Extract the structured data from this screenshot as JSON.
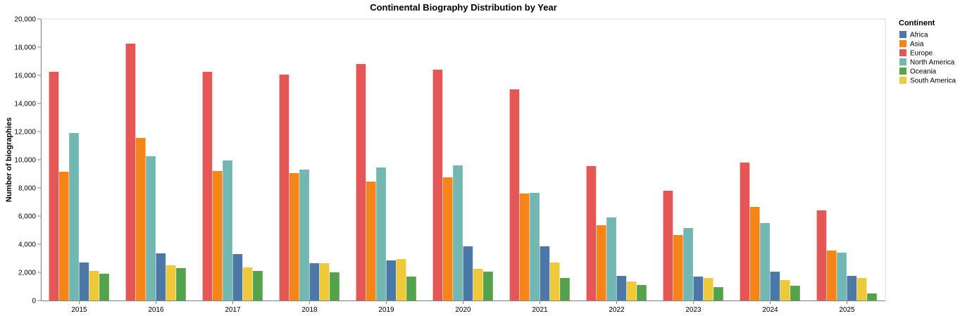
{
  "chart_data": {
    "type": "bar",
    "title": "Continental Biography Distribution by Year",
    "xlabel": "",
    "ylabel": "Number of biographies",
    "ylim": [
      0,
      20000
    ],
    "yticks": [
      "0",
      "2,000",
      "4,000",
      "6,000",
      "8,000",
      "10,000",
      "12,000",
      "14,000",
      "16,000",
      "18,000",
      "20,000"
    ],
    "grid": false,
    "legend": {
      "title": "Continent",
      "position": "top-right"
    },
    "categories": [
      "2015",
      "2016",
      "2017",
      "2018",
      "2019",
      "2020",
      "2021",
      "2022",
      "2023",
      "2024",
      "2025"
    ],
    "series": [
      {
        "name": "Europe",
        "color": "#e45756",
        "values": [
          16250,
          18250,
          16250,
          16050,
          16800,
          16400,
          15000,
          9550,
          7800,
          9800,
          6400
        ]
      },
      {
        "name": "Asia",
        "color": "#f58518",
        "values": [
          9150,
          11550,
          9200,
          9050,
          8450,
          8750,
          7600,
          5350,
          4650,
          6650,
          3550
        ]
      },
      {
        "name": "North America",
        "color": "#72b7b2",
        "values": [
          11900,
          10250,
          9950,
          9300,
          9450,
          9600,
          7650,
          5900,
          5150,
          5500,
          3400
        ]
      },
      {
        "name": "Africa",
        "color": "#4c78a8",
        "values": [
          2700,
          3350,
          3300,
          2650,
          2850,
          3850,
          3850,
          1750,
          1700,
          2050,
          1750
        ]
      },
      {
        "name": "South America",
        "color": "#eeca3b",
        "values": [
          2100,
          2500,
          2350,
          2650,
          2950,
          2250,
          2700,
          1350,
          1600,
          1450,
          1600
        ]
      },
      {
        "name": "Oceania",
        "color": "#54a24b",
        "values": [
          1900,
          2300,
          2100,
          2000,
          1700,
          2050,
          1600,
          1100,
          950,
          1050,
          500
        ]
      }
    ],
    "legend_order": [
      "Africa",
      "Asia",
      "Europe",
      "North America",
      "Oceania",
      "South America"
    ]
  }
}
